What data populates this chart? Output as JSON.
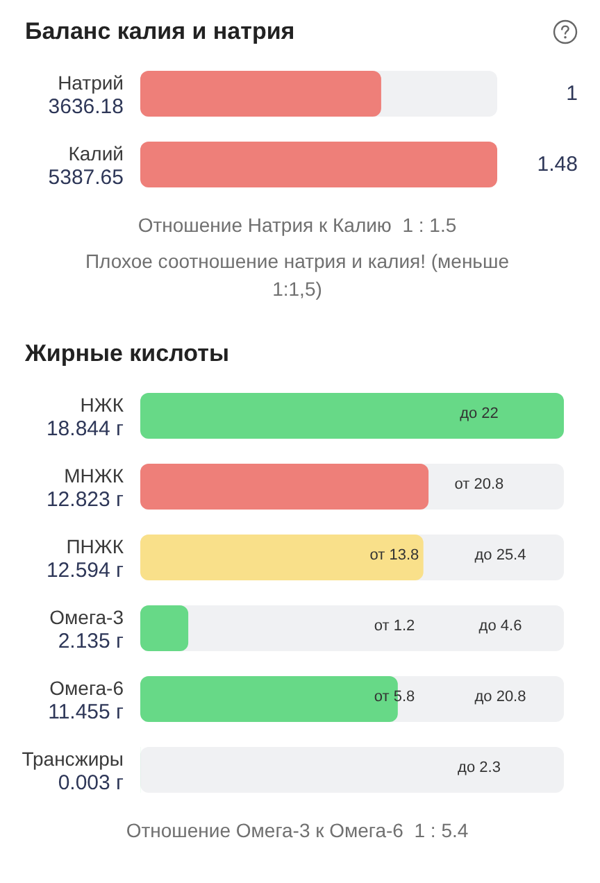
{
  "chart_data": [
    {
      "type": "bar",
      "orientation": "horizontal",
      "title": "Баланс калия и натрия",
      "categories": [
        "Натрий",
        "Калий"
      ],
      "values": [
        3636.18,
        5387.65
      ],
      "value_labels": [
        "3636.18",
        "5387.65"
      ],
      "colors": [
        "#ee7f79",
        "#ee7f79"
      ],
      "annotations": [
        "1",
        "1.48",
        "Отношение Натрия к Калию  1 : 1.5",
        "Плохое соотношение натрия и калия! (меньше 1:1,5)"
      ]
    },
    {
      "type": "bar",
      "orientation": "horizontal",
      "title": "Жирные кислоты",
      "categories": [
        "НЖК",
        "МНЖК",
        "ПНЖК",
        "Омега-3",
        "Омега-6",
        "Трансжиры"
      ],
      "values": [
        18.844,
        12.823,
        12.594,
        2.135,
        11.455,
        0.003
      ],
      "value_labels": [
        "18.844 г",
        "12.823 г",
        "12.594 г",
        "2.135 г",
        "11.455 г",
        "0.003 г"
      ],
      "colors": [
        "#67d987",
        "#ee7f79",
        "#f9e08a",
        "#67d987",
        "#67d987",
        "#67d987"
      ],
      "annotations": [
        "до 22",
        "от 20.8",
        "от 13.8",
        "до 25.4",
        "от 1.2",
        "до 4.6",
        "от 5.8",
        "до 20.8",
        "до 2.3",
        "Отношение Омега-3 к Омега-6  1 : 5.4"
      ]
    }
  ]
}
